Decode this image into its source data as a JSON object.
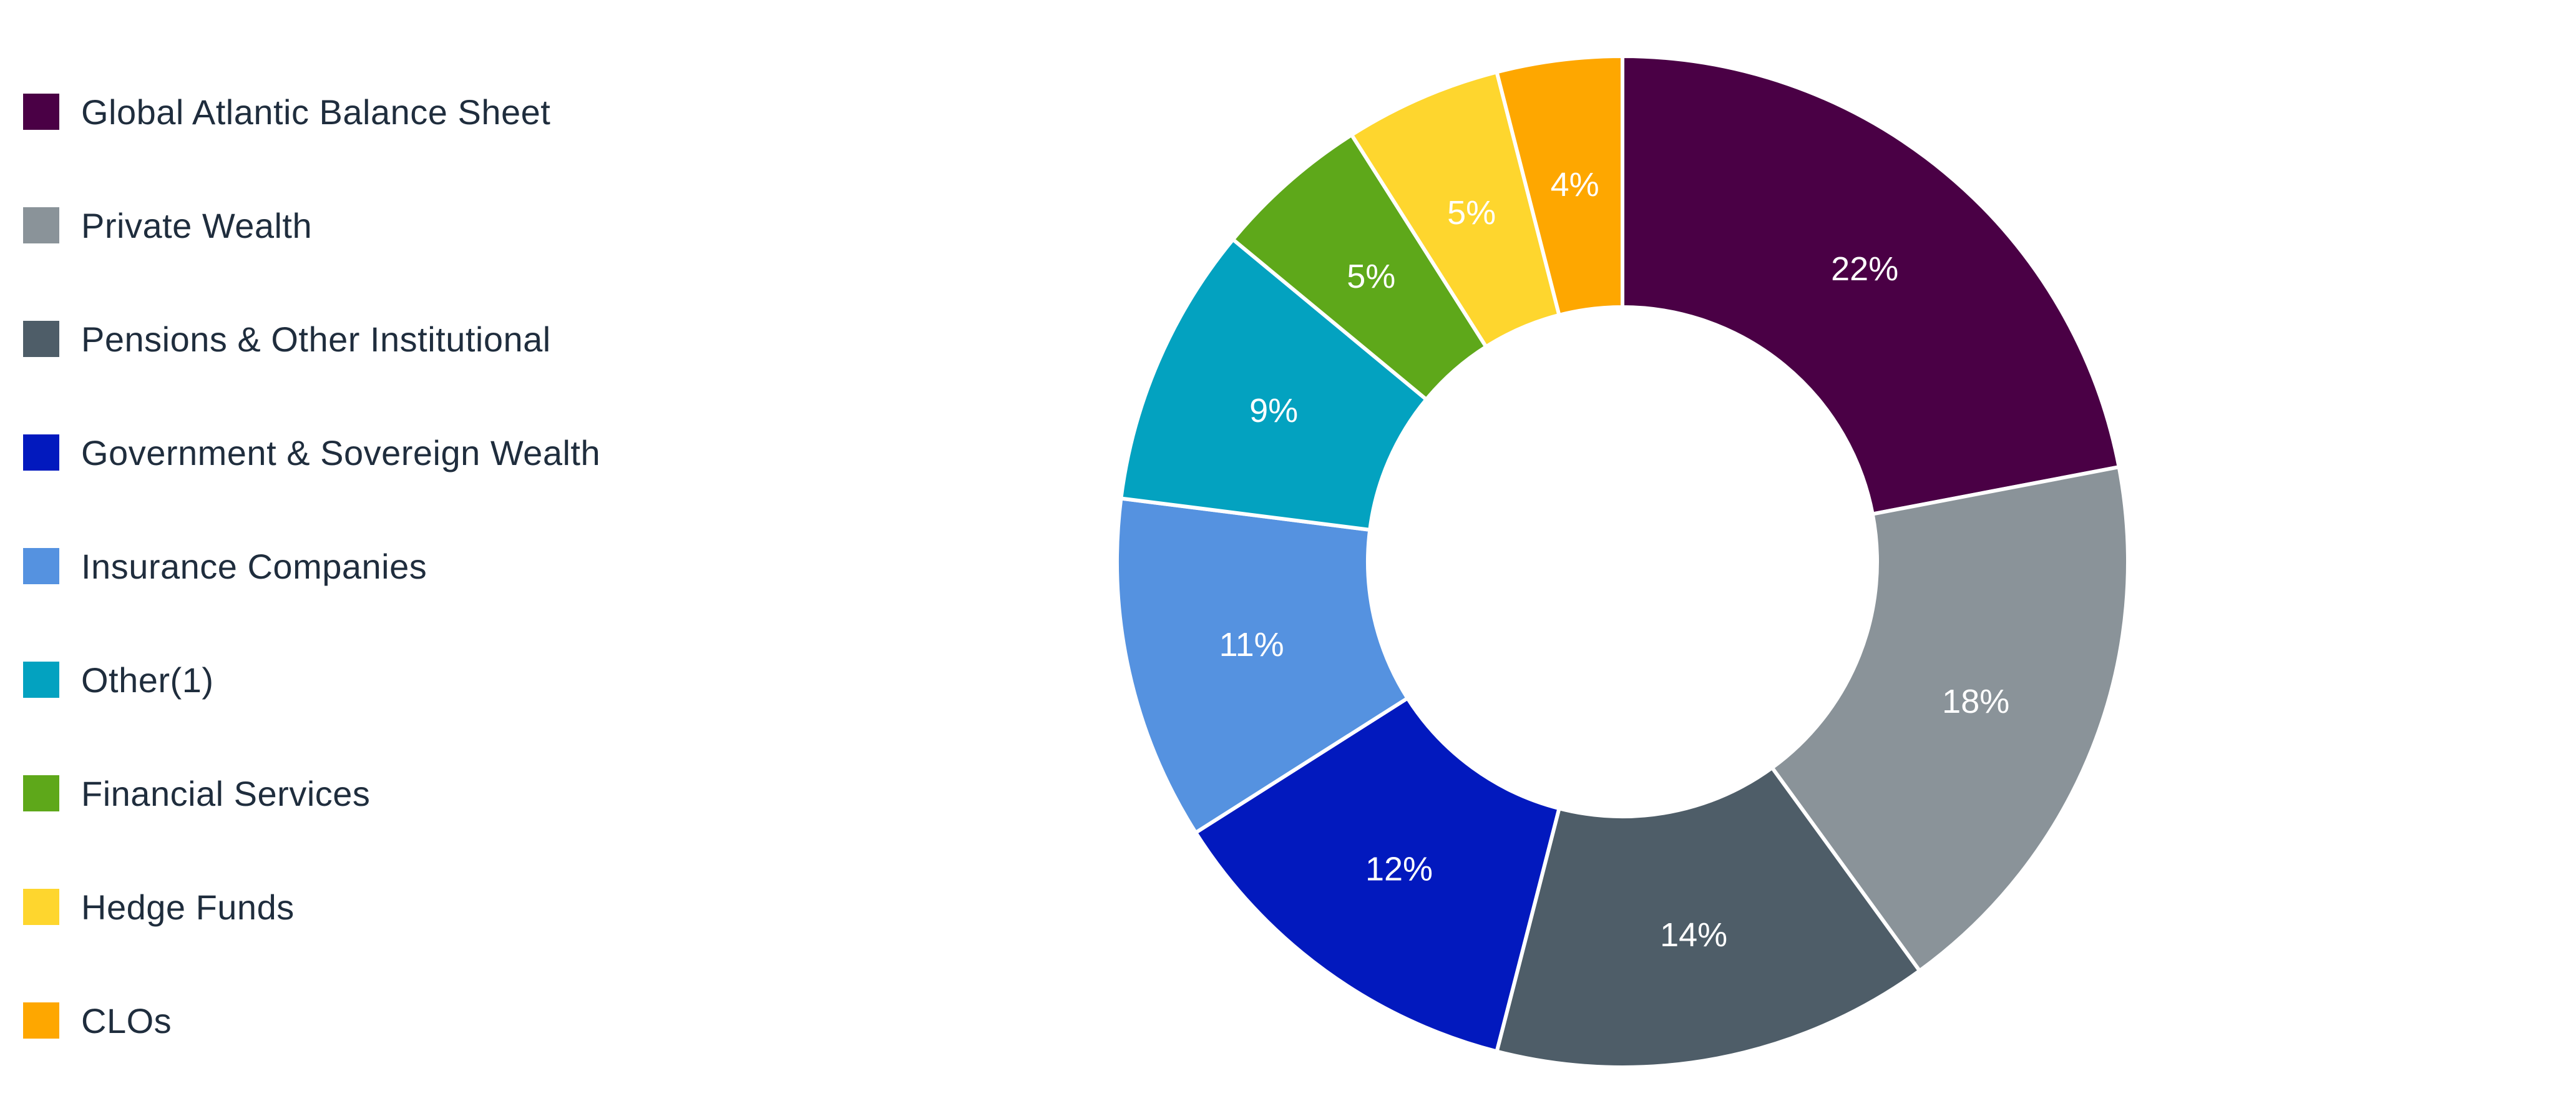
{
  "chart_data": {
    "type": "pie",
    "subtype": "donut",
    "legend_position": "left",
    "categories": [
      "Global Atlantic Balance Sheet",
      "Private Wealth",
      "Pensions & Other Institutional",
      "Government & Sovereign Wealth",
      "Insurance Companies",
      "Other(1)",
      "Financial Services",
      "Hedge Funds",
      "CLOs"
    ],
    "values": [
      22,
      18,
      14,
      12,
      11,
      9,
      5,
      5,
      4
    ],
    "data_labels": [
      "22%",
      "18%",
      "14%",
      "12%",
      "11%",
      "9%",
      "5%",
      "5%",
      "4%"
    ],
    "colors": [
      "#4a0045",
      "#8a9399",
      "#4e5d68",
      "#0219be",
      "#5592e0",
      "#03a2c0",
      "#5ea81a",
      "#fed62e",
      "#fea700"
    ],
    "value_unit": "%"
  }
}
